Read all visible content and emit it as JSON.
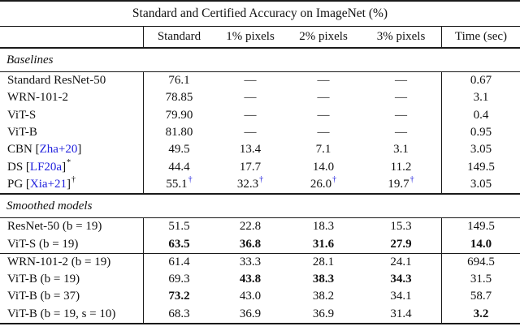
{
  "colors": {
    "citation_blue": "#2222dd",
    "text": "#111111",
    "rule": "#1a1a1a"
  },
  "table": {
    "title": "Standard and Certified Accuracy on ImageNet (%)",
    "columns": [
      "Standard",
      "1% pixels",
      "2% pixels",
      "3% pixels",
      "Time (sec)"
    ],
    "sections": [
      {
        "label": "Baselines",
        "groups": [
          {
            "rows": [
              {
                "model": {
                  "pre": "Standard ResNet-50"
                },
                "cells": [
                  {
                    "v": "76.1"
                  },
                  {
                    "v": "—"
                  },
                  {
                    "v": "—"
                  },
                  {
                    "v": "—"
                  },
                  {
                    "v": "0.67"
                  }
                ]
              },
              {
                "model": {
                  "pre": "WRN-101-2"
                },
                "cells": [
                  {
                    "v": "78.85"
                  },
                  {
                    "v": "—"
                  },
                  {
                    "v": "—"
                  },
                  {
                    "v": "—"
                  },
                  {
                    "v": "3.1"
                  }
                ]
              },
              {
                "model": {
                  "pre": "ViT-S"
                },
                "cells": [
                  {
                    "v": "79.90"
                  },
                  {
                    "v": "—"
                  },
                  {
                    "v": "—"
                  },
                  {
                    "v": "—"
                  },
                  {
                    "v": "0.4"
                  }
                ]
              },
              {
                "model": {
                  "pre": "ViT-B"
                },
                "cells": [
                  {
                    "v": "81.80"
                  },
                  {
                    "v": "—"
                  },
                  {
                    "v": "—"
                  },
                  {
                    "v": "—"
                  },
                  {
                    "v": "0.95"
                  }
                ]
              },
              {
                "model": {
                  "pre": "CBN [",
                  "cite": "Zha+20",
                  "post": "]"
                },
                "cells": [
                  {
                    "v": "49.5"
                  },
                  {
                    "v": "13.4"
                  },
                  {
                    "v": "7.1"
                  },
                  {
                    "v": "3.1"
                  },
                  {
                    "v": "3.05"
                  }
                ]
              },
              {
                "model": {
                  "pre": "DS [",
                  "cite": "LF20a",
                  "post": "]",
                  "sup": "*"
                },
                "cells": [
                  {
                    "v": "44.4"
                  },
                  {
                    "v": "17.7"
                  },
                  {
                    "v": "14.0"
                  },
                  {
                    "v": "11.2"
                  },
                  {
                    "v": "149.5"
                  }
                ]
              },
              {
                "model": {
                  "pre": "PG [",
                  "cite": "Xia+21",
                  "post": "]",
                  "sup": "†"
                },
                "cells": [
                  {
                    "v": "55.1",
                    "sup": "†",
                    "supBlue": true
                  },
                  {
                    "v": "32.3",
                    "sup": "†",
                    "supBlue": true
                  },
                  {
                    "v": "26.0",
                    "sup": "†",
                    "supBlue": true
                  },
                  {
                    "v": "19.7",
                    "sup": "†",
                    "supBlue": true
                  },
                  {
                    "v": "3.05"
                  }
                ]
              }
            ]
          }
        ]
      },
      {
        "label": "Smoothed models",
        "groups": [
          {
            "rows": [
              {
                "model": {
                  "pre": "ResNet-50 (b = 19)"
                },
                "cells": [
                  {
                    "v": "51.5"
                  },
                  {
                    "v": "22.8"
                  },
                  {
                    "v": "18.3"
                  },
                  {
                    "v": "15.3"
                  },
                  {
                    "v": "149.5"
                  }
                ]
              },
              {
                "model": {
                  "pre": "ViT-S (b = 19)"
                },
                "cells": [
                  {
                    "v": "63.5",
                    "b": true
                  },
                  {
                    "v": "36.8",
                    "b": true
                  },
                  {
                    "v": "31.6",
                    "b": true
                  },
                  {
                    "v": "27.9",
                    "b": true
                  },
                  {
                    "v": "14.0",
                    "b": true
                  }
                ]
              }
            ]
          },
          {
            "rows": [
              {
                "model": {
                  "pre": "WRN-101-2 (b = 19)"
                },
                "cells": [
                  {
                    "v": "61.4"
                  },
                  {
                    "v": "33.3"
                  },
                  {
                    "v": "28.1"
                  },
                  {
                    "v": "24.1"
                  },
                  {
                    "v": "694.5"
                  }
                ]
              },
              {
                "model": {
                  "pre": "ViT-B (b = 19)"
                },
                "cells": [
                  {
                    "v": "69.3"
                  },
                  {
                    "v": "43.8",
                    "b": true
                  },
                  {
                    "v": "38.3",
                    "b": true
                  },
                  {
                    "v": "34.3",
                    "b": true
                  },
                  {
                    "v": "31.5"
                  }
                ]
              },
              {
                "model": {
                  "pre": "ViT-B (b = 37)"
                },
                "cells": [
                  {
                    "v": "73.2",
                    "b": true
                  },
                  {
                    "v": "43.0"
                  },
                  {
                    "v": "38.2"
                  },
                  {
                    "v": "34.1"
                  },
                  {
                    "v": "58.7"
                  }
                ]
              },
              {
                "model": {
                  "pre": "ViT-B (b = 19, s = 10)"
                },
                "cells": [
                  {
                    "v": "68.3"
                  },
                  {
                    "v": "36.9"
                  },
                  {
                    "v": "36.9"
                  },
                  {
                    "v": "31.4"
                  },
                  {
                    "v": "3.2",
                    "b": true
                  }
                ]
              }
            ]
          }
        ]
      }
    ]
  }
}
